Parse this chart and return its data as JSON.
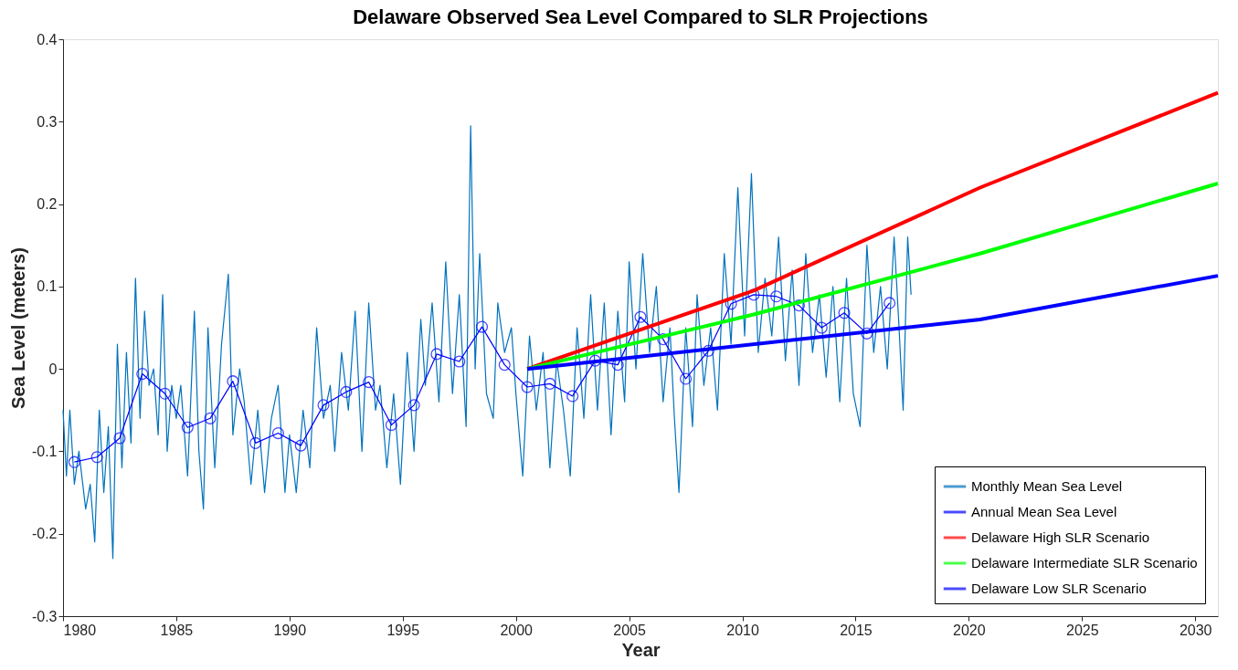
{
  "chart_data": {
    "type": "line",
    "title": "Delaware Observed Sea Level Compared to SLR Projections",
    "xlabel": "Year",
    "ylabel": "Sea Level (meters)",
    "xlim": [
      1980,
      2031
    ],
    "xticks": [
      1980,
      1985,
      1990,
      1995,
      2000,
      2005,
      2010,
      2015,
      2020,
      2025,
      2030
    ],
    "ylim": [
      -0.3,
      0.4
    ],
    "yticks": [
      -0.3,
      -0.2,
      -0.1,
      0,
      0.1,
      0.2,
      0.3,
      0.4
    ],
    "grid": false,
    "legend": "bottom right",
    "series": [
      {
        "name": "Monthly Mean Sea Level",
        "color": "#0072bd",
        "marker": "none",
        "x": [
          1980.0,
          1980.15,
          1980.3,
          1980.5,
          1980.7,
          1981.0,
          1981.2,
          1981.4,
          1981.6,
          1981.8,
          1982.0,
          1982.2,
          1982.4,
          1982.6,
          1982.8,
          1983.0,
          1983.2,
          1983.4,
          1983.6,
          1983.8,
          1984.0,
          1984.2,
          1984.4,
          1984.6,
          1984.8,
          1985.0,
          1985.2,
          1985.5,
          1985.8,
          1986.0,
          1986.2,
          1986.4,
          1986.7,
          1987.0,
          1987.3,
          1987.5,
          1987.8,
          1988.0,
          1988.3,
          1988.6,
          1988.9,
          1989.2,
          1989.5,
          1989.8,
          1990.0,
          1990.3,
          1990.6,
          1990.9,
          1991.2,
          1991.5,
          1991.8,
          1992.0,
          1992.3,
          1992.6,
          1992.9,
          1993.2,
          1993.5,
          1993.8,
          1994.0,
          1994.3,
          1994.6,
          1994.9,
          1995.2,
          1995.5,
          1995.8,
          1996.0,
          1996.3,
          1996.6,
          1996.9,
          1997.2,
          1997.5,
          1997.8,
          1998.0,
          1998.2,
          1998.4,
          1998.7,
          1999.0,
          1999.2,
          1999.5,
          1999.8,
          2000.0,
          2000.3,
          2000.6,
          2000.9,
          2001.2,
          2001.5,
          2001.8,
          2002.1,
          2002.4,
          2002.7,
          2003.0,
          2003.3,
          2003.6,
          2003.9,
          2004.2,
          2004.5,
          2004.8,
          2005.0,
          2005.3,
          2005.6,
          2005.9,
          2006.2,
          2006.5,
          2006.8,
          2007.0,
          2007.2,
          2007.5,
          2007.8,
          2008.0,
          2008.3,
          2008.6,
          2008.9,
          2009.2,
          2009.5,
          2009.8,
          2010.1,
          2010.4,
          2010.7,
          2011.0,
          2011.3,
          2011.6,
          2011.9,
          2012.2,
          2012.5,
          2012.8,
          2013.1,
          2013.4,
          2013.7,
          2014.0,
          2014.3,
          2014.6,
          2014.9,
          2015.2,
          2015.5,
          2015.8,
          2016.1,
          2016.4,
          2016.7,
          2016.9,
          2017.1,
          2017.3,
          2017.45
        ],
        "values": [
          -0.05,
          -0.13,
          -0.05,
          -0.14,
          -0.1,
          -0.17,
          -0.14,
          -0.21,
          -0.05,
          -0.15,
          -0.07,
          -0.23,
          0.03,
          -0.12,
          0.02,
          -0.09,
          0.11,
          -0.06,
          0.07,
          -0.02,
          0.0,
          -0.08,
          0.09,
          -0.1,
          -0.02,
          -0.06,
          -0.02,
          -0.13,
          0.07,
          -0.1,
          -0.17,
          0.05,
          -0.12,
          0.03,
          0.115,
          -0.08,
          0.0,
          -0.04,
          -0.14,
          -0.05,
          -0.15,
          -0.06,
          -0.02,
          -0.15,
          -0.08,
          -0.15,
          -0.05,
          -0.12,
          0.05,
          -0.06,
          -0.02,
          -0.1,
          0.02,
          -0.05,
          0.07,
          -0.1,
          0.08,
          -0.05,
          -0.02,
          -0.12,
          -0.03,
          -0.14,
          0.02,
          -0.1,
          0.06,
          -0.02,
          0.08,
          -0.04,
          0.13,
          -0.03,
          0.09,
          -0.07,
          0.295,
          0.0,
          0.14,
          -0.03,
          -0.06,
          0.08,
          0.02,
          0.05,
          -0.03,
          -0.13,
          0.04,
          -0.05,
          0.02,
          -0.12,
          0.01,
          -0.05,
          -0.13,
          0.05,
          -0.06,
          0.09,
          -0.05,
          0.08,
          -0.08,
          0.07,
          -0.04,
          0.13,
          0.0,
          0.14,
          0.02,
          0.1,
          -0.04,
          0.05,
          -0.06,
          -0.15,
          0.05,
          -0.07,
          0.09,
          -0.02,
          0.05,
          -0.05,
          0.14,
          0.03,
          0.22,
          0.04,
          0.237,
          0.02,
          0.11,
          0.04,
          0.16,
          0.01,
          0.12,
          -0.02,
          0.14,
          0.02,
          0.09,
          -0.01,
          0.1,
          -0.04,
          0.11,
          -0.03,
          -0.07,
          0.15,
          0.02,
          0.1,
          0.0,
          0.16,
          0.06,
          -0.05,
          0.16,
          0.09
        ]
      },
      {
        "name": "Annual Mean Sea Level",
        "color": "#0000ff",
        "marker": "circle",
        "x": [
          1980.5,
          1981.5,
          1982.5,
          1983.5,
          1984.5,
          1985.5,
          1986.5,
          1987.5,
          1988.5,
          1989.5,
          1990.5,
          1991.5,
          1992.5,
          1993.5,
          1994.5,
          1995.5,
          1996.5,
          1997.5,
          1998.5,
          1999.5,
          2000.5,
          2001.5,
          2002.5,
          2003.5,
          2004.5,
          2005.5,
          2006.5,
          2007.5,
          2008.5,
          2009.5,
          2010.5,
          2011.5,
          2012.5,
          2013.5,
          2014.5,
          2015.5,
          2016.5
        ],
        "values": [
          -0.113,
          -0.107,
          -0.084,
          -0.006,
          -0.03,
          -0.071,
          -0.06,
          -0.015,
          -0.09,
          -0.078,
          -0.093,
          -0.044,
          -0.028,
          -0.016,
          -0.068,
          -0.044,
          0.018,
          0.009,
          0.051,
          0.005,
          -0.022,
          -0.018,
          -0.033,
          0.01,
          0.005,
          0.063,
          0.036,
          -0.012,
          0.022,
          0.079,
          0.09,
          0.088,
          0.077,
          0.05,
          0.068,
          0.043,
          0.08
        ]
      },
      {
        "name": "Delaware High SLR Scenario",
        "color": "#ff0000",
        "marker": "none",
        "x": [
          2000.5,
          2010.5,
          2020.5,
          2031
        ],
        "values": [
          0.0,
          0.095,
          0.22,
          0.335
        ]
      },
      {
        "name": "Delaware Intermediate SLR Scenario",
        "color": "#00ff00",
        "marker": "none",
        "x": [
          2000.5,
          2010.5,
          2020.5,
          2031
        ],
        "values": [
          0.0,
          0.066,
          0.14,
          0.225
        ]
      },
      {
        "name": "Delaware Low SLR Scenario",
        "color": "#0000ff",
        "marker": "none",
        "x": [
          2000.5,
          2020.5,
          2031
        ],
        "values": [
          0.0,
          0.06,
          0.113
        ]
      }
    ]
  }
}
